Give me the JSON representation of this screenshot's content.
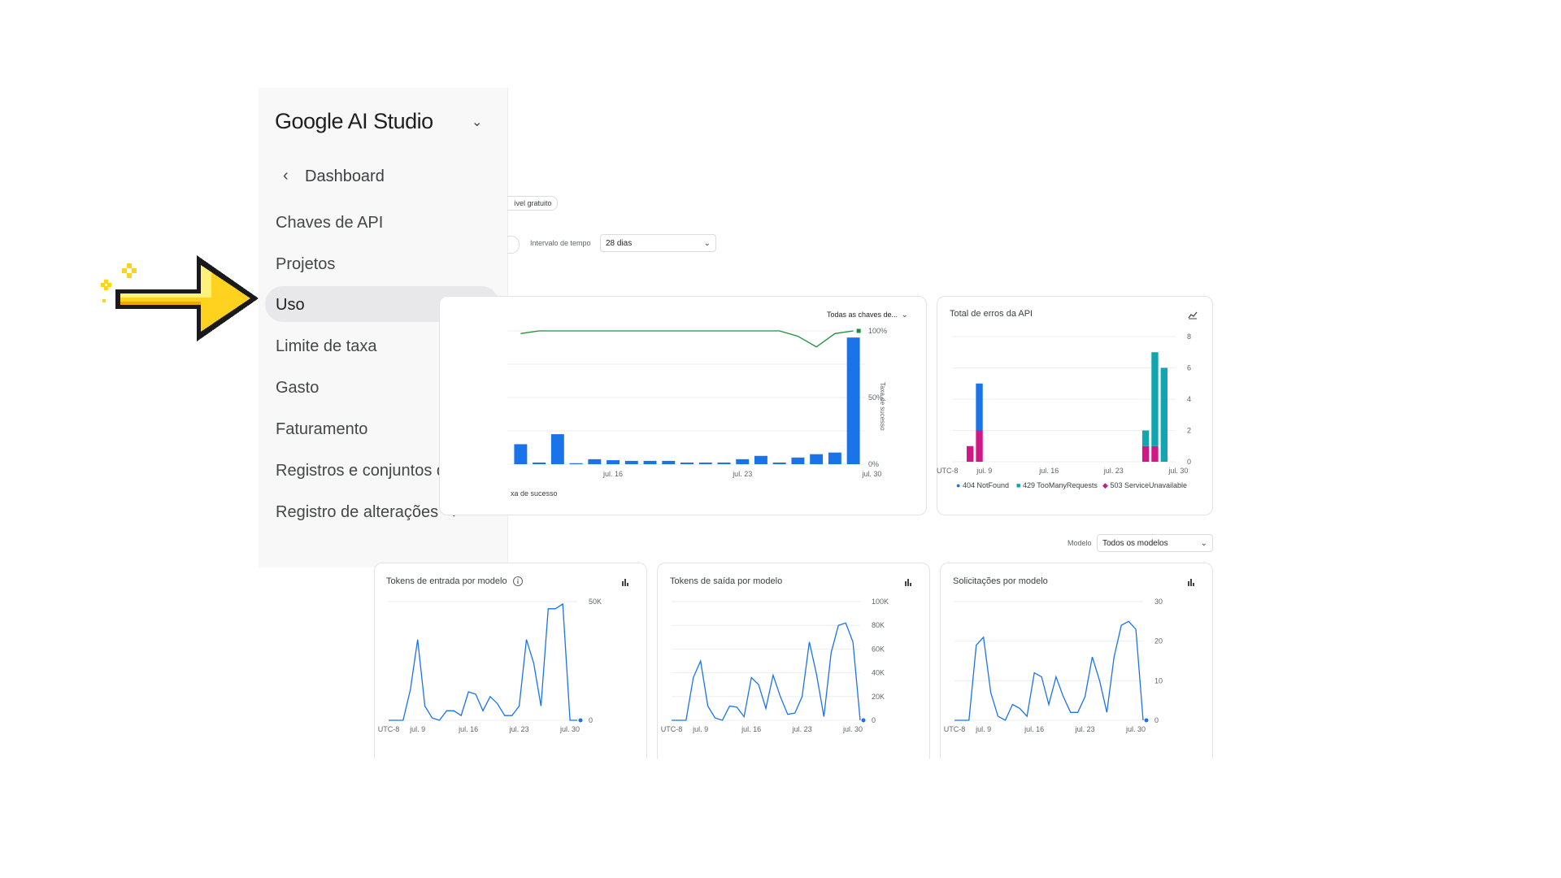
{
  "sidebar": {
    "brand": "Google AI Studio",
    "back_label": "Dashboard",
    "items": [
      {
        "label": "Chaves de API"
      },
      {
        "label": "Projetos"
      },
      {
        "label": "Uso"
      },
      {
        "label": "Limite de taxa"
      },
      {
        "label": "Gasto"
      },
      {
        "label": "Faturamento"
      },
      {
        "label": "Registros e conjuntos de dados"
      },
      {
        "label": "Registro de alterações"
      }
    ],
    "active_item": "Uso"
  },
  "filters": {
    "tier_badge": "ível gratuito",
    "time_label": "Intervalo de tempo",
    "time_value": "28 dias",
    "model_label": "Modelo",
    "model_value": "Todos os modelos"
  },
  "colors": {
    "accent_blue": "#1a73e8",
    "success_green": "#1e8e3e",
    "teal": "#12a4af",
    "magenta": "#d01884",
    "arrow_yellow": "#ffd21f"
  },
  "requests_card": {
    "keys_select": "Todas as chaves de...",
    "right_axis_title": "Taxa de sucesso",
    "legend_fragment": "xa de sucesso",
    "chart_data": {
      "type": "bar",
      "series": [
        {
          "values": [
            6,
            0.5,
            9,
            0.3,
            1.5,
            1.2,
            1,
            1,
            1,
            0.5,
            0.5,
            0.5,
            1.5,
            2.5,
            0.5,
            2,
            3,
            3.5,
            38
          ]
        },
        {
          "name": "Taxa de sucesso",
          "type": "line",
          "values": [
            98,
            100,
            100,
            100,
            100,
            100,
            100,
            100,
            100,
            100,
            100,
            100,
            100,
            100,
            100,
            96,
            88,
            98,
            100
          ]
        }
      ],
      "right_ticks": [
        "100%",
        "50%",
        "0%"
      ],
      "x_ticks": [
        "jul. 16",
        "jul. 23",
        "jul. 30"
      ],
      "grid": true
    }
  },
  "errors_card": {
    "title": "Total de erros da API",
    "chart_data": {
      "type": "bar",
      "stacked": true,
      "y_ticks": [
        "8",
        "6",
        "4",
        "2",
        "0"
      ],
      "ylim": [
        0,
        8
      ],
      "x_ticks": [
        "UTC-8",
        "jul. 9",
        "jul. 16",
        "jul. 23",
        "jul. 30"
      ],
      "series": [
        {
          "name": "404 NotFound",
          "color": "#1a73e8"
        },
        {
          "name": "429 TooManyRequests",
          "color": "#12a4af"
        },
        {
          "name": "503 ServiceUnavailable",
          "color": "#d01884"
        }
      ],
      "bars": [
        {
          "slot": 0,
          "segments": [
            {
              "series": 2,
              "value": 1
            }
          ]
        },
        {
          "slot": 1,
          "segments": [
            {
              "series": 2,
              "value": 2
            },
            {
              "series": 0,
              "value": 3
            }
          ]
        },
        {
          "slot": 19,
          "segments": [
            {
              "series": 2,
              "value": 1
            },
            {
              "series": 1,
              "value": 1
            }
          ]
        },
        {
          "slot": 20,
          "segments": [
            {
              "series": 2,
              "value": 1
            },
            {
              "series": 1,
              "value": 6
            }
          ]
        },
        {
          "slot": 21,
          "segments": [
            {
              "series": 1,
              "value": 6
            }
          ]
        }
      ]
    }
  },
  "bottom_cards": [
    {
      "title": "Tokens de entrada por modelo",
      "chart_data": {
        "type": "line",
        "y_ticks": [
          "50K",
          "0"
        ],
        "ymax": 50,
        "x_ticks": [
          "UTC-8",
          "jul. 9",
          "jul. 16",
          "jul. 23",
          "jul. 30"
        ],
        "values": [
          0,
          0,
          0,
          13,
          34,
          6,
          1,
          0,
          4,
          4,
          2,
          12,
          11,
          4,
          10,
          7,
          2,
          2,
          6,
          34,
          24,
          6,
          47,
          47,
          49,
          0,
          0
        ]
      }
    },
    {
      "title": "Tokens de saída por modelo",
      "chart_data": {
        "type": "line",
        "y_ticks": [
          "100K",
          "80K",
          "60K",
          "40K",
          "20K",
          "0"
        ],
        "ymax": 100,
        "x_ticks": [
          "UTC-8",
          "jul. 9",
          "jul. 16",
          "jul. 23",
          "jul. 30"
        ],
        "values": [
          0,
          0,
          0,
          36,
          50,
          12,
          2,
          0,
          12,
          11,
          3,
          36,
          30,
          10,
          38,
          20,
          5,
          6,
          20,
          66,
          38,
          3,
          57,
          80,
          82,
          66,
          0
        ]
      }
    },
    {
      "title": "Solicitações por modelo",
      "chart_data": {
        "type": "line",
        "y_ticks": [
          "30",
          "20",
          "10",
          "0"
        ],
        "ymax": 30,
        "x_ticks": [
          "UTC-8",
          "jul. 9",
          "jul. 16",
          "jul. 23",
          "jul. 30"
        ],
        "values": [
          0,
          0,
          0,
          19,
          21,
          7,
          1,
          0,
          4,
          3,
          1,
          12,
          11,
          4,
          11,
          6,
          2,
          2,
          6,
          16,
          10,
          2,
          16,
          24,
          25,
          23,
          0
        ]
      }
    }
  ]
}
